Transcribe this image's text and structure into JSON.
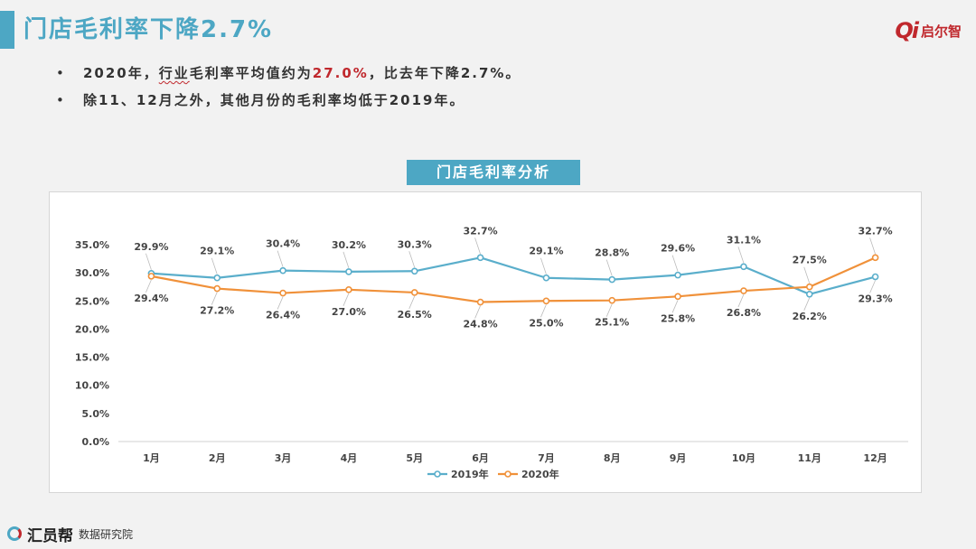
{
  "page": {
    "title": "门店毛利率下降2.7%",
    "logo_mark": "Qi",
    "logo_text": "启尔智",
    "bullets": [
      {
        "pre": "2020年，",
        "underlined": "行业",
        "mid": "毛利率平均值约为",
        "highlight": "27.0%",
        "post": "，比去年下降2.7%。"
      },
      {
        "text": "除11、12月之外，其他月份的毛利率均低于2019年。"
      }
    ],
    "bullet_marker": "•",
    "source_brand": "汇员帮",
    "source_text": "数据研究院"
  },
  "chart_data": {
    "type": "line",
    "title": "门店毛利率分析",
    "categories": [
      "1月",
      "2月",
      "3月",
      "4月",
      "5月",
      "6月",
      "7月",
      "8月",
      "9月",
      "10月",
      "11月",
      "12月"
    ],
    "series": [
      {
        "name": "2019年",
        "color": "#5aaecb",
        "values": [
          29.9,
          29.1,
          30.4,
          30.2,
          30.3,
          32.7,
          29.1,
          28.8,
          29.6,
          31.1,
          26.2,
          29.3
        ]
      },
      {
        "name": "2020年",
        "color": "#f0913a",
        "values": [
          29.4,
          27.2,
          26.4,
          27.0,
          26.5,
          24.8,
          25.0,
          25.1,
          25.8,
          26.8,
          27.5,
          32.7
        ]
      }
    ],
    "ylim": [
      0,
      35
    ],
    "yticks": [
      "0.0%",
      "5.0%",
      "10.0%",
      "15.0%",
      "20.0%",
      "25.0%",
      "30.0%",
      "35.0%"
    ],
    "data_labels": {
      "2019年": [
        "29.9%",
        "29.1%",
        "30.4%",
        "30.2%",
        "30.3%",
        "32.7%",
        "29.1%",
        "28.8%",
        "29.6%",
        "31.1%",
        "26.2%",
        "29.3%"
      ],
      "2020年": [
        "29.4%",
        "27.2%",
        "26.4%",
        "27.0%",
        "26.5%",
        "24.8%",
        "25.0%",
        "25.1%",
        "25.8%",
        "26.8%",
        "27.5%",
        "32.7%"
      ]
    },
    "legend_position": "bottom",
    "grid": false
  }
}
